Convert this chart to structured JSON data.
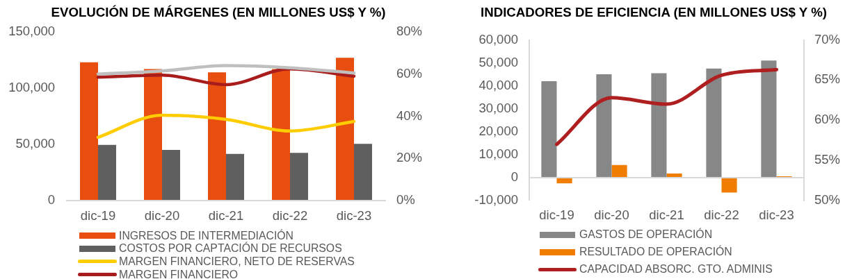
{
  "chart_data": [
    {
      "type": "bar",
      "title": "EVOLUCIÓN DE MÁRGENES (EN MILLONES US$ Y %)",
      "categories": [
        "dic-19",
        "dic-20",
        "dic-21",
        "dic-22",
        "dic-23"
      ],
      "series": [
        {
          "name": "INGRESOS DE INTERMEDIACIÓN",
          "color": "#e84e0f",
          "values": [
            123000,
            117000,
            114000,
            117000,
            127000
          ]
        },
        {
          "name": "COSTOS POR CAPTACIÓN DE RECURSOS",
          "color": "#5f5f5f",
          "values": [
            49500,
            45000,
            41500,
            42500,
            50500
          ]
        },
        {
          "name": "MARGEN FINANCIERO, NETO DE RESERVAS",
          "type": "line",
          "axis": "y2",
          "color": "#ffcc00",
          "values": [
            30,
            40.5,
            38.5,
            33,
            37.5
          ]
        },
        {
          "name": "MARGEN FINANCIERO",
          "type": "line",
          "axis": "y2",
          "color": "#a81c1c",
          "values": [
            58.5,
            59.5,
            55,
            62.5,
            59
          ]
        },
        {
          "type": "line",
          "axis": "y2",
          "color": "#bfbfbf",
          "values": [
            60,
            61.5,
            64,
            63,
            60.5
          ]
        }
      ],
      "ylim": [
        0,
        150000
      ],
      "yticks": [
        0,
        {
          "value": 50000,
          "label": "50,000"
        },
        {
          "value": 100000,
          "label": "100,000"
        },
        {
          "value": 150000,
          "label": "150,000"
        }
      ],
      "y2lim": [
        0,
        80
      ],
      "y2ticks": [
        {
          "value": 0,
          "label": "0%"
        },
        {
          "value": 20,
          "label": "20%"
        },
        {
          "value": 40,
          "label": "40%"
        },
        {
          "value": 60,
          "label": "60%"
        },
        {
          "value": 80,
          "label": "80%"
        }
      ],
      "legend": "bottom"
    },
    {
      "type": "bar",
      "title": "INDICADORES DE EFICIENCIA (EN MILLONES US$ Y %)",
      "categories": [
        "dic-19",
        "dic-20",
        "dic-21",
        "dic-22",
        "dic-23"
      ],
      "series": [
        {
          "name": "GASTOS DE OPERACIÓN",
          "color": "#878787",
          "values": [
            42000,
            45000,
            45500,
            47500,
            51000
          ]
        },
        {
          "name": "RESULTADO DE OPERACIÓN",
          "color": "#f07d00",
          "values": [
            -2500,
            5500,
            1800,
            -6500,
            600
          ]
        },
        {
          "name": "CAPACIDAD ABSORC. GTO. ADMINIS",
          "type": "line",
          "axis": "y2",
          "color": "#b01f1f",
          "values": [
            57,
            62.8,
            62,
            65.6,
            66.3
          ]
        }
      ],
      "ylim": [
        -10000,
        60000
      ],
      "yticks": [
        {
          "value": -10000,
          "label": "-10,000"
        },
        0,
        {
          "value": 10000,
          "label": "10,000"
        },
        {
          "value": 20000,
          "label": "20,000"
        },
        {
          "value": 30000,
          "label": "30,000"
        },
        {
          "value": 40000,
          "label": "40,000"
        },
        {
          "value": 50000,
          "label": "50,000"
        },
        {
          "value": 60000,
          "label": "60,000"
        }
      ],
      "y2lim": [
        50,
        70
      ],
      "y2ticks": [
        {
          "value": 50,
          "label": "50%"
        },
        {
          "value": 55,
          "label": "55%"
        },
        {
          "value": 60,
          "label": "60%"
        },
        {
          "value": 65,
          "label": "65%"
        },
        {
          "value": 70,
          "label": "70%"
        }
      ],
      "legend": "bottom"
    }
  ]
}
